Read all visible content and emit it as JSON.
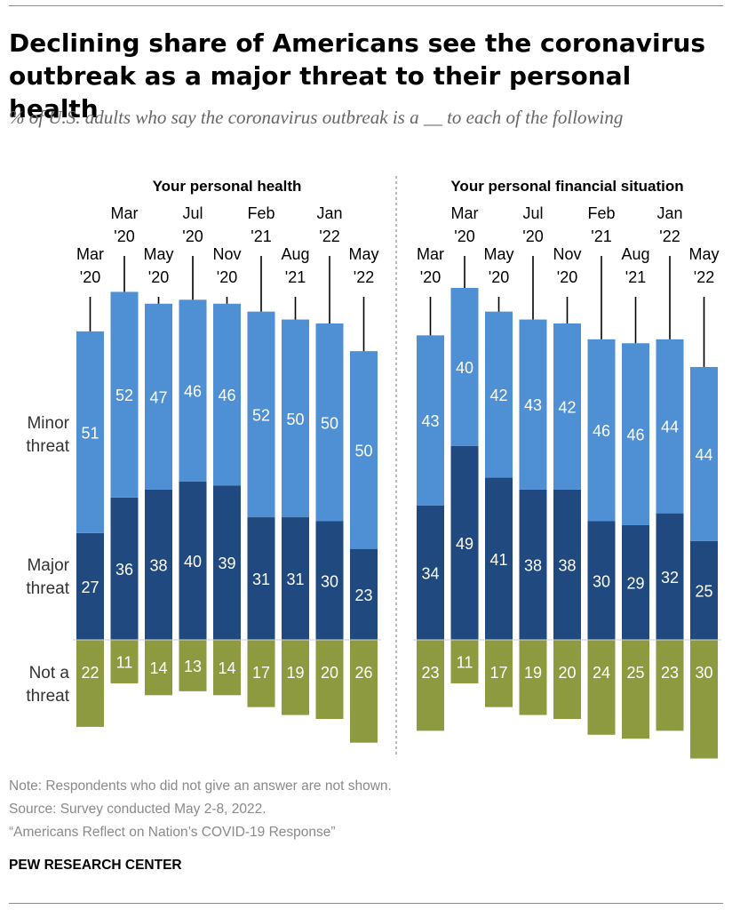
{
  "title": "Declining share of Americans see the coronavirus outbreak as a major threat to their personal health",
  "subtitle": "% of U.S. adults who say the coronavirus outbreak is a __ to each of the following",
  "notes": {
    "note": "Note: Respondents who did not give an answer are not shown.",
    "source": "Source: Survey conducted May 2-8, 2022.",
    "report": "“Americans Reflect on Nation’s COVID-19 Response”"
  },
  "brand": "PEW RESEARCH CENTER",
  "colors": {
    "minor": "#4f8fd4",
    "major": "#204a7f",
    "not": "#8e9a3f",
    "divider": "#999999"
  },
  "chart_data": {
    "type": "bar",
    "stacked": true,
    "row_labels": {
      "minor": [
        "Minor",
        "threat"
      ],
      "major": [
        "Major",
        "threat"
      ],
      "not": [
        "Not a",
        "threat"
      ]
    },
    "panels": [
      {
        "title": "Your personal health",
        "categories": [
          [
            "Mar",
            "'20"
          ],
          [
            "Mar",
            "'20"
          ],
          [
            "May",
            "'20"
          ],
          [
            "Jul",
            "'20"
          ],
          [
            "Nov",
            "'20"
          ],
          [
            "Feb",
            "'21"
          ],
          [
            "Aug",
            "'21"
          ],
          [
            "Jan",
            "'22"
          ],
          [
            "May",
            "'22"
          ]
        ],
        "series": [
          {
            "name": "Major threat",
            "key": "major",
            "values": [
              27,
              36,
              38,
              40,
              39,
              31,
              31,
              30,
              23
            ]
          },
          {
            "name": "Minor threat",
            "key": "minor",
            "values": [
              51,
              52,
              47,
              46,
              46,
              52,
              50,
              50,
              50
            ]
          },
          {
            "name": "Not a threat",
            "key": "not",
            "values": [
              22,
              11,
              14,
              13,
              14,
              17,
              19,
              20,
              26
            ]
          }
        ]
      },
      {
        "title": "Your personal financial situation",
        "categories": [
          [
            "Mar",
            "'20"
          ],
          [
            "Mar",
            "'20"
          ],
          [
            "May",
            "'20"
          ],
          [
            "Jul",
            "'20"
          ],
          [
            "Nov",
            "'20"
          ],
          [
            "Feb",
            "'21"
          ],
          [
            "Aug",
            "'21"
          ],
          [
            "Jan",
            "'22"
          ],
          [
            "May",
            "'22"
          ]
        ],
        "series": [
          {
            "name": "Major threat",
            "key": "major",
            "values": [
              34,
              49,
              41,
              38,
              38,
              30,
              29,
              32,
              25
            ]
          },
          {
            "name": "Minor threat",
            "key": "minor",
            "values": [
              43,
              40,
              42,
              43,
              42,
              46,
              46,
              44,
              44
            ]
          },
          {
            "name": "Not a threat",
            "key": "not",
            "values": [
              23,
              11,
              17,
              19,
              20,
              24,
              25,
              23,
              30
            ]
          }
        ]
      }
    ]
  }
}
